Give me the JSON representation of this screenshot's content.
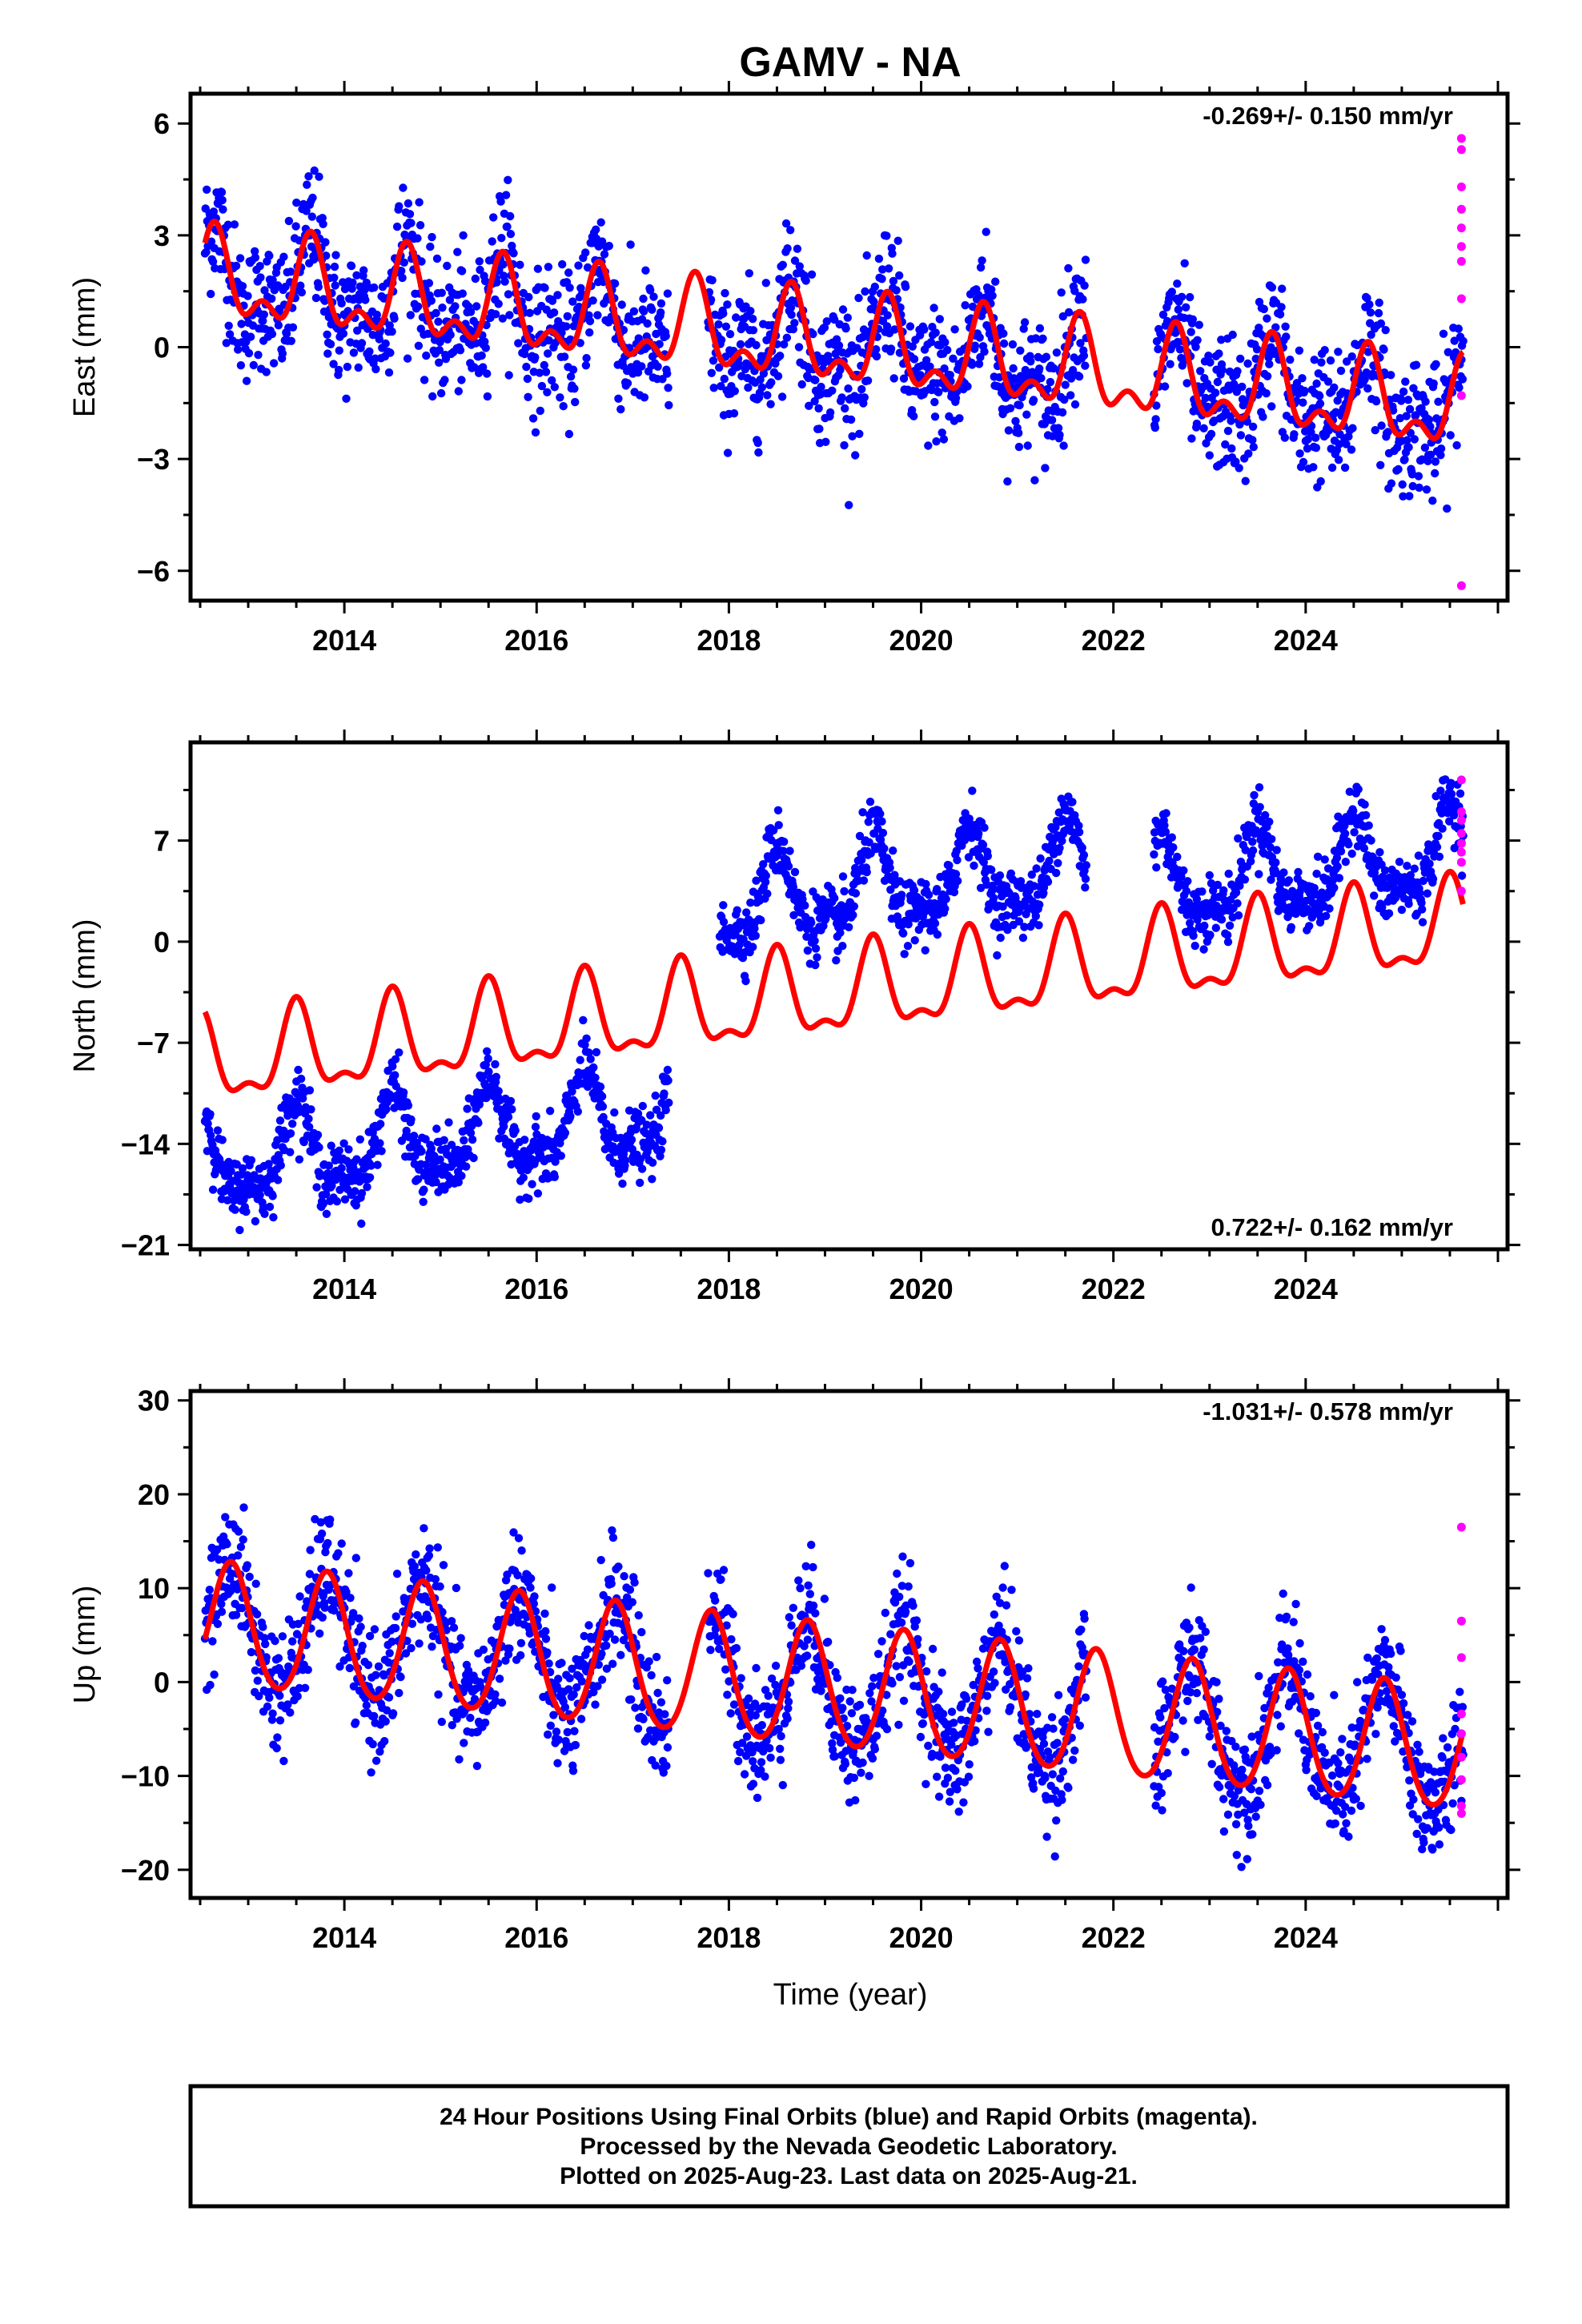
{
  "title": "GAMV - NA",
  "xlabel": "Time (year)",
  "footnote": [
    "24 Hour Positions Using Final Orbits (blue) and Rapid Orbits (magenta).",
    "Processed by the Nevada Geodetic Laboratory.",
    "Plotted on 2025-Aug-23. Last data on 2025-Aug-21."
  ],
  "colors": {
    "final": "#0000ff",
    "rapid": "#ff00ff",
    "fit": "#ff0000"
  },
  "chart_data": [
    {
      "type": "scatter",
      "ylabel": "East (mm)",
      "rate_label": "-0.269+/- 0.150 mm/yr",
      "xlim": [
        2012.4,
        2026.1
      ],
      "ylim": [
        -6.8,
        6.8
      ],
      "xticks": [
        2014,
        2016,
        2018,
        2020,
        2022,
        2024
      ],
      "yticks": [
        -6,
        -3,
        0,
        3,
        6
      ],
      "data_start": 2012.55,
      "data_end": 2025.64,
      "gaps": [
        [
          2017.38,
          2017.78
        ],
        [
          2021.72,
          2022.42
        ]
      ],
      "model": {
        "offset": 1.8,
        "rate": -0.269,
        "annual_amp": 1.0,
        "annual_phase_year": 2012.65,
        "semiannual_amp": 0.6
      },
      "scatter_sd": 0.9,
      "rapid_points": [
        {
          "x": 2025.62,
          "y": 5.6
        },
        {
          "x": 2025.62,
          "y": 5.3
        },
        {
          "x": 2025.62,
          "y": 4.3
        },
        {
          "x": 2025.62,
          "y": 3.7
        },
        {
          "x": 2025.62,
          "y": 3.2
        },
        {
          "x": 2025.62,
          "y": 2.7
        },
        {
          "x": 2025.62,
          "y": 2.3
        },
        {
          "x": 2025.62,
          "y": 1.3
        },
        {
          "x": 2025.62,
          "y": -1.3
        },
        {
          "x": 2025.62,
          "y": -6.4
        }
      ]
    },
    {
      "type": "scatter",
      "ylabel": "North (mm)",
      "rate_label": "0.722+/- 0.162 mm/yr",
      "xlim": [
        2012.4,
        2026.1
      ],
      "ylim": [
        -21.3,
        13.8
      ],
      "xticks": [
        2014,
        2016,
        2018,
        2020,
        2022,
        2024
      ],
      "yticks": [
        -21,
        -14,
        -7,
        0,
        7
      ],
      "data_start": 2012.55,
      "data_end": 2025.64,
      "gaps": [
        [
          2017.38,
          2017.9
        ],
        [
          2021.72,
          2022.42
        ]
      ],
      "model": {
        "offset": -8.5,
        "rate": 0.722,
        "annual_amp": 2.8,
        "annual_phase_year": 2012.5,
        "semiannual_amp": 1.2
      },
      "offsets": [
        {
          "from": 2012.4,
          "to": 2017.5,
          "shift": -7.0
        },
        {
          "from": 2017.5,
          "to": 2022.0,
          "shift": 7.0
        },
        {
          "from": 2022.0,
          "to": 2026.1,
          "shift": 5.0
        }
      ],
      "scatter_sd": 1.1,
      "rapid_points": [
        {
          "x": 2025.62,
          "y": 11.2
        },
        {
          "x": 2025.62,
          "y": 9.0
        },
        {
          "x": 2025.62,
          "y": 8.4
        },
        {
          "x": 2025.62,
          "y": 7.5
        },
        {
          "x": 2025.62,
          "y": 6.8
        },
        {
          "x": 2025.62,
          "y": 6.2
        },
        {
          "x": 2025.62,
          "y": 5.5
        },
        {
          "x": 2025.62,
          "y": 3.5
        }
      ]
    },
    {
      "type": "scatter",
      "ylabel": "Up (mm)",
      "rate_label": "-1.031+/- 0.578 mm/yr",
      "xlim": [
        2012.4,
        2026.1
      ],
      "ylim": [
        -23.0,
        31.0
      ],
      "xticks": [
        2014,
        2016,
        2018,
        2020,
        2022,
        2024
      ],
      "yticks": [
        -20,
        -10,
        0,
        10,
        20,
        30
      ],
      "data_start": 2012.55,
      "data_end": 2025.64,
      "gaps": [
        [
          2017.38,
          2017.78
        ],
        [
          2021.72,
          2022.42
        ]
      ],
      "model": {
        "offset": 6.0,
        "rate": -1.031,
        "annual_amp": 6.5,
        "annual_phase_year": 2012.82,
        "semiannual_amp": 0.6
      },
      "scatter_sd": 3.2,
      "rapid_points": [
        {
          "x": 2025.62,
          "y": 16.5
        },
        {
          "x": 2025.62,
          "y": 6.5
        },
        {
          "x": 2025.62,
          "y": 2.6
        },
        {
          "x": 2025.62,
          "y": -3.4
        },
        {
          "x": 2025.62,
          "y": -5.5
        },
        {
          "x": 2025.62,
          "y": -8.0
        },
        {
          "x": 2025.62,
          "y": -10.4
        },
        {
          "x": 2025.62,
          "y": -13.2
        },
        {
          "x": 2025.62,
          "y": -14.0
        }
      ]
    }
  ]
}
